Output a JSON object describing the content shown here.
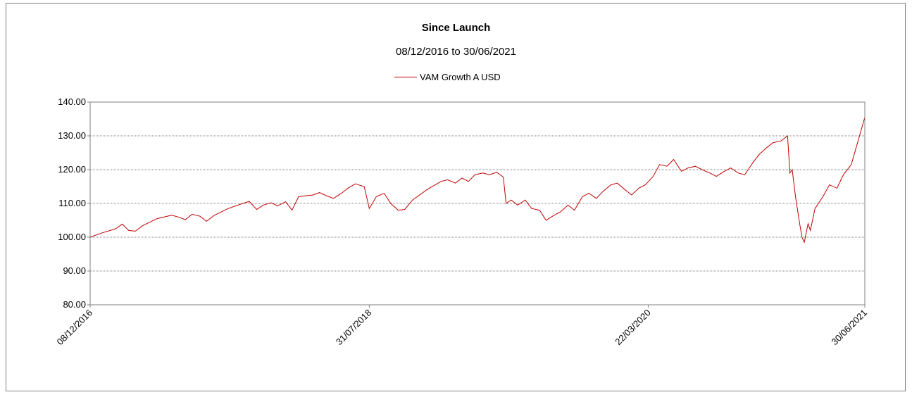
{
  "chart_data": {
    "type": "line",
    "title": "Since Launch",
    "subtitle": "08/12/2016 to 30/06/2021",
    "legend_position": "top-center",
    "grid": true,
    "y_ticks": [
      "80.00",
      "90.00",
      "100.00",
      "110.00",
      "120.00",
      "130.00",
      "140.00"
    ],
    "ylim": [
      80,
      140
    ],
    "x_ticks": [
      "08/12/2016",
      "31/07/2018",
      "22/03/2020",
      "30/06/2021"
    ],
    "xlim": [
      "08/12/2016",
      "30/06/2021"
    ],
    "series": [
      {
        "name": "VAM Growth A USD",
        "color": "#c00000",
        "points": [
          [
            "08/12/2016",
            100.0
          ],
          [
            "01/01/2017",
            101.2
          ],
          [
            "01/02/2017",
            102.5
          ],
          [
            "15/02/2017",
            103.9
          ],
          [
            "01/03/2017",
            102.0
          ],
          [
            "15/03/2017",
            101.8
          ],
          [
            "01/04/2017",
            103.5
          ],
          [
            "01/05/2017",
            105.5
          ],
          [
            "01/06/2017",
            106.5
          ],
          [
            "15/06/2017",
            106.0
          ],
          [
            "01/07/2017",
            105.2
          ],
          [
            "15/07/2017",
            106.8
          ],
          [
            "01/08/2017",
            106.2
          ],
          [
            "15/08/2017",
            104.7
          ],
          [
            "01/09/2017",
            106.5
          ],
          [
            "01/10/2017",
            108.5
          ],
          [
            "01/11/2017",
            110.0
          ],
          [
            "15/11/2017",
            110.6
          ],
          [
            "01/12/2017",
            108.2
          ],
          [
            "15/12/2017",
            109.5
          ],
          [
            "01/01/2018",
            110.2
          ],
          [
            "15/01/2018",
            109.3
          ],
          [
            "01/02/2018",
            110.5
          ],
          [
            "15/02/2018",
            108.0
          ],
          [
            "01/03/2018",
            112.0
          ],
          [
            "01/04/2018",
            112.5
          ],
          [
            "15/04/2018",
            113.2
          ],
          [
            "01/05/2018",
            112.2
          ],
          [
            "15/05/2018",
            111.5
          ],
          [
            "01/06/2018",
            113.0
          ],
          [
            "15/06/2018",
            114.5
          ],
          [
            "01/07/2018",
            115.8
          ],
          [
            "20/07/2018",
            115.0
          ],
          [
            "31/07/2018",
            108.5
          ],
          [
            "15/08/2018",
            112.0
          ],
          [
            "01/09/2018",
            113.0
          ],
          [
            "15/09/2018",
            110.0
          ],
          [
            "01/10/2018",
            108.0
          ],
          [
            "15/10/2018",
            108.2
          ],
          [
            "01/11/2018",
            111.0
          ],
          [
            "01/12/2018",
            114.0
          ],
          [
            "01/01/2019",
            116.5
          ],
          [
            "15/01/2019",
            117.0
          ],
          [
            "01/02/2019",
            116.0
          ],
          [
            "15/02/2019",
            117.5
          ],
          [
            "01/03/2019",
            116.5
          ],
          [
            "15/03/2019",
            118.5
          ],
          [
            "01/04/2019",
            119.0
          ],
          [
            "15/04/2019",
            118.5
          ],
          [
            "01/05/2019",
            119.2
          ],
          [
            "15/05/2019",
            117.8
          ],
          [
            "21/05/2019",
            110.0
          ],
          [
            "01/06/2019",
            111.0
          ],
          [
            "15/06/2019",
            109.5
          ],
          [
            "01/07/2019",
            111.0
          ],
          [
            "15/07/2019",
            108.5
          ],
          [
            "01/08/2019",
            108.0
          ],
          [
            "15/08/2019",
            105.0
          ],
          [
            "01/09/2019",
            106.5
          ],
          [
            "15/09/2019",
            107.5
          ],
          [
            "01/10/2019",
            109.5
          ],
          [
            "15/10/2019",
            108.0
          ],
          [
            "01/11/2019",
            112.0
          ],
          [
            "15/11/2019",
            113.0
          ],
          [
            "01/12/2019",
            111.5
          ],
          [
            "15/12/2019",
            113.5
          ],
          [
            "01/01/2020",
            115.5
          ],
          [
            "15/01/2020",
            116.0
          ],
          [
            "01/02/2020",
            114.0
          ],
          [
            "15/02/2020",
            112.5
          ],
          [
            "01/03/2020",
            114.5
          ],
          [
            "15/03/2020",
            115.5
          ],
          [
            "22/03/2020",
            116.5
          ],
          [
            "01/04/2020",
            118.0
          ],
          [
            "15/04/2020",
            121.5
          ],
          [
            "01/05/2020",
            121.0
          ],
          [
            "15/05/2020",
            123.0
          ],
          [
            "01/06/2020",
            119.5
          ],
          [
            "15/06/2020",
            120.5
          ],
          [
            "01/07/2020",
            121.0
          ],
          [
            "15/07/2020",
            120.0
          ],
          [
            "01/08/2020",
            119.0
          ],
          [
            "15/08/2020",
            118.0
          ],
          [
            "01/09/2020",
            119.5
          ],
          [
            "15/09/2020",
            120.5
          ],
          [
            "01/10/2020",
            119.0
          ],
          [
            "15/10/2020",
            118.5
          ],
          [
            "01/11/2020",
            122.0
          ],
          [
            "15/11/2020",
            124.5
          ],
          [
            "01/12/2020",
            126.5
          ],
          [
            "15/12/2020",
            128.0
          ],
          [
            "01/01/2021",
            128.5
          ],
          [
            "15/01/2021",
            130.0
          ],
          [
            "20/01/2021",
            119.0
          ],
          [
            "25/01/2021",
            120.0
          ],
          [
            "01/02/2021",
            112.0
          ],
          [
            "10/02/2021",
            104.0
          ],
          [
            "15/02/2021",
            100.0
          ],
          [
            "20/02/2021",
            98.5
          ],
          [
            "28/02/2021",
            104.0
          ],
          [
            "05/03/2021",
            102.0
          ],
          [
            "15/03/2021",
            108.5
          ],
          [
            "01/04/2021",
            112.0
          ],
          [
            "15/04/2021",
            115.5
          ],
          [
            "01/05/2021",
            114.5
          ],
          [
            "15/05/2021",
            118.5
          ],
          [
            "01/06/2021",
            121.5
          ],
          [
            "30/06/2021",
            135.5
          ]
        ]
      }
    ]
  }
}
